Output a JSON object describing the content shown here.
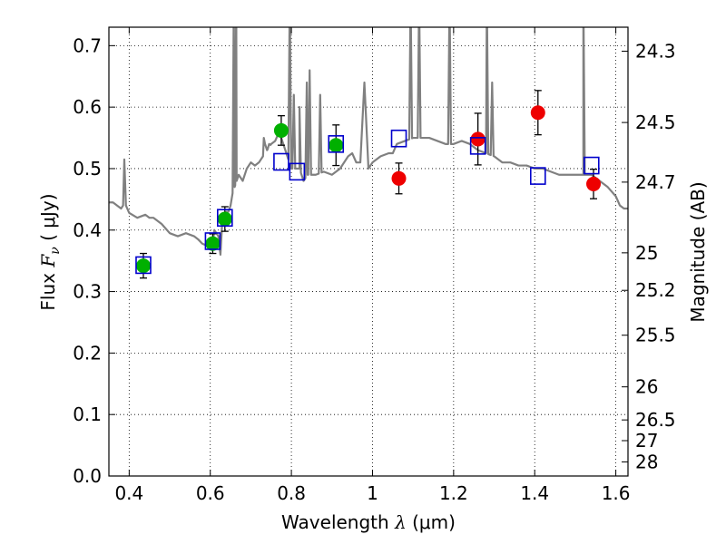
{
  "chart_data": {
    "type": "scatter",
    "x_axis": {
      "label": "Wavelength",
      "symbol": "λ",
      "unit": "μm",
      "range": [
        0.35,
        1.63
      ],
      "ticks": [
        0.4,
        0.6,
        0.8,
        1.0,
        1.2,
        1.4,
        1.6
      ],
      "tick_labels": [
        "0.4",
        "0.6",
        "0.8",
        "1",
        "1.2",
        "1.4",
        "1.6"
      ]
    },
    "y_axis": {
      "label": "Flux",
      "symbol": "F",
      "subscript": "ν",
      "unit": "μJy",
      "range": [
        0.0,
        0.73
      ],
      "ticks": [
        0.0,
        0.1,
        0.2,
        0.3,
        0.4,
        0.5,
        0.6,
        0.7
      ],
      "tick_labels": [
        "0.0",
        "0.1",
        "0.2",
        "0.3",
        "0.4",
        "0.5",
        "0.6",
        "0.7"
      ]
    },
    "y2_axis": {
      "label": "Magnitude (AB)",
      "ticks": [
        {
          "label": "24.3",
          "flux": 0.691
        },
        {
          "label": "24.5",
          "flux": 0.575
        },
        {
          "label": "24.7",
          "flux": 0.478
        },
        {
          "label": "25",
          "flux": 0.363
        },
        {
          "label": "25.2",
          "flux": 0.302
        },
        {
          "label": "25.5",
          "flux": 0.229
        },
        {
          "label": "26",
          "flux": 0.145
        },
        {
          "label": "26.5",
          "flux": 0.0912
        },
        {
          "label": "27",
          "flux": 0.0575
        },
        {
          "label": "28",
          "flux": 0.0229
        }
      ]
    },
    "grid": true,
    "series": [
      {
        "kind": "green_points",
        "color": "#00b000",
        "points": [
          {
            "x": 0.435,
            "y": 0.342,
            "err": 0.02
          },
          {
            "x": 0.606,
            "y": 0.378,
            "err": 0.016
          },
          {
            "x": 0.636,
            "y": 0.418,
            "err": 0.02
          },
          {
            "x": 0.775,
            "y": 0.562,
            "err": 0.024
          },
          {
            "x": 0.91,
            "y": 0.538,
            "err": 0.033
          }
        ]
      },
      {
        "kind": "red_points",
        "color": "#ee0000",
        "points": [
          {
            "x": 1.065,
            "y": 0.484,
            "err": 0.025
          },
          {
            "x": 1.26,
            "y": 0.548,
            "err": 0.042
          },
          {
            "x": 1.408,
            "y": 0.591,
            "err": 0.036
          },
          {
            "x": 1.545,
            "y": 0.475,
            "err": 0.024
          }
        ]
      },
      {
        "kind": "model_squares",
        "color": "#0000cc",
        "points": [
          {
            "x": 0.435,
            "y": 0.343
          },
          {
            "x": 0.606,
            "y": 0.382
          },
          {
            "x": 0.636,
            "y": 0.42
          },
          {
            "x": 0.775,
            "y": 0.511
          },
          {
            "x": 0.814,
            "y": 0.495
          },
          {
            "x": 0.91,
            "y": 0.54
          },
          {
            "x": 1.065,
            "y": 0.549
          },
          {
            "x": 1.26,
            "y": 0.537
          },
          {
            "x": 1.408,
            "y": 0.488
          },
          {
            "x": 1.54,
            "y": 0.505
          }
        ]
      },
      {
        "kind": "model_spectrum",
        "color": "#808080",
        "x": [
          0.35,
          0.36,
          0.37,
          0.38,
          0.385,
          0.388,
          0.392,
          0.4,
          0.42,
          0.44,
          0.45,
          0.46,
          0.47,
          0.48,
          0.5,
          0.52,
          0.54,
          0.56,
          0.57,
          0.58,
          0.59,
          0.6,
          0.605,
          0.61,
          0.62,
          0.625,
          0.63,
          0.64,
          0.645,
          0.65,
          0.655,
          0.66,
          0.665,
          0.67,
          0.68,
          0.69,
          0.7,
          0.71,
          0.72,
          0.73,
          0.735,
          0.74,
          0.75,
          0.76,
          0.77,
          0.78,
          0.79,
          0.8,
          0.81,
          0.82,
          0.83,
          0.84,
          0.86,
          0.88,
          0.9,
          0.92,
          0.94,
          0.95,
          0.96,
          0.97,
          0.98,
          0.99,
          1.0,
          1.02,
          1.04,
          1.05,
          1.06,
          1.08,
          1.1,
          1.12,
          1.14,
          1.16,
          1.18,
          1.2,
          1.22,
          1.24,
          1.26,
          1.28,
          1.3,
          1.32,
          1.34,
          1.36,
          1.38,
          1.4,
          1.42,
          1.44,
          1.46,
          1.48,
          1.5,
          1.52,
          1.54,
          1.56,
          1.58,
          1.6,
          1.61,
          1.62,
          1.63
        ],
        "y": [
          0.445,
          0.445,
          0.44,
          0.435,
          0.44,
          0.515,
          0.44,
          0.428,
          0.42,
          0.425,
          0.42,
          0.42,
          0.415,
          0.41,
          0.395,
          0.39,
          0.395,
          0.39,
          0.385,
          0.378,
          0.375,
          0.38,
          0.37,
          0.4,
          0.39,
          0.36,
          0.42,
          0.43,
          0.43,
          0.44,
          0.46,
          0.47,
          0.48,
          0.49,
          0.48,
          0.5,
          0.51,
          0.505,
          0.51,
          0.52,
          0.54,
          0.53,
          0.54,
          0.545,
          0.56,
          0.54,
          0.52,
          0.5,
          0.5,
          0.5,
          0.48,
          0.49,
          0.49,
          0.495,
          0.49,
          0.5,
          0.52,
          0.525,
          0.51,
          0.51,
          0.64,
          0.5,
          0.51,
          0.52,
          0.525,
          0.525,
          0.54,
          0.545,
          0.55,
          0.55,
          0.55,
          0.545,
          0.54,
          0.54,
          0.545,
          0.54,
          0.53,
          0.525,
          0.52,
          0.51,
          0.51,
          0.505,
          0.505,
          0.5,
          0.5,
          0.495,
          0.49,
          0.49,
          0.49,
          0.49,
          0.49,
          0.48,
          0.47,
          0.455,
          0.44,
          0.435,
          0.435
        ],
        "emission_lines": [
          {
            "x": 0.658,
            "peak": 0.78
          },
          {
            "x": 0.664,
            "peak": 0.78
          },
          {
            "x": 0.732,
            "peak": 0.55
          },
          {
            "x": 0.745,
            "peak": 0.54
          },
          {
            "x": 0.796,
            "peak": 0.78
          },
          {
            "x": 0.806,
            "peak": 0.62
          },
          {
            "x": 0.82,
            "peak": 0.6
          },
          {
            "x": 0.838,
            "peak": 0.64
          },
          {
            "x": 0.845,
            "peak": 0.66
          },
          {
            "x": 0.871,
            "peak": 0.62
          },
          {
            "x": 0.98,
            "peak": 0.64
          },
          {
            "x": 1.094,
            "peak": 0.78
          },
          {
            "x": 1.115,
            "peak": 0.78
          },
          {
            "x": 1.19,
            "peak": 0.78
          },
          {
            "x": 1.282,
            "peak": 0.78
          },
          {
            "x": 1.295,
            "peak": 0.64
          },
          {
            "x": 1.52,
            "peak": 0.78
          }
        ]
      }
    ]
  }
}
